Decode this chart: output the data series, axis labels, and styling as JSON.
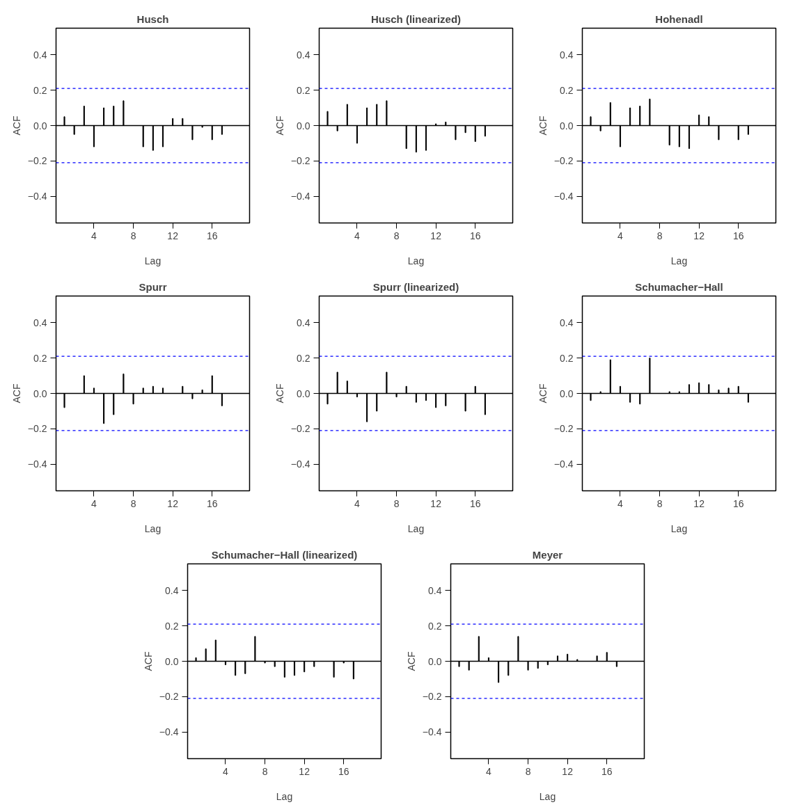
{
  "chart_data": [
    {
      "type": "bar",
      "title": "Husch",
      "xlabel": "Lag",
      "ylabel": "ACF",
      "x": [
        1,
        2,
        3,
        4,
        5,
        6,
        7,
        8,
        9,
        10,
        11,
        12,
        13,
        14,
        15,
        16,
        17
      ],
      "series": [
        {
          "color": "#000000",
          "values": [
            0.05,
            -0.05,
            0.11,
            -0.12,
            0.1,
            0.11,
            0.14,
            0.0,
            -0.12,
            -0.14,
            -0.12,
            0.04,
            0.04,
            -0.08,
            -0.01,
            -0.08,
            -0.05
          ]
        }
      ],
      "xlim": [
        0.15,
        19.8
      ],
      "ylim": [
        -0.55,
        0.55
      ],
      "xticks": [
        4,
        8,
        12,
        16
      ],
      "yticks": [
        {
          "value": -0.4,
          "label": "−0.4"
        },
        {
          "value": -0.2,
          "label": "−0.2"
        },
        {
          "value": 0.0,
          "label": "0.0"
        },
        {
          "value": 0.2,
          "label": "0.2"
        },
        {
          "value": 0.4,
          "label": "0.4"
        }
      ],
      "grid": false,
      "ref_lines": [
        {
          "axis": "y",
          "value": 0,
          "color": "#000000",
          "line_style": "solid"
        },
        {
          "axis": "y",
          "value": 0.21,
          "color": "#0000ff",
          "line_style": "dashed"
        },
        {
          "axis": "y",
          "value": -0.21,
          "color": "#0000ff",
          "line_style": "dashed"
        }
      ]
    },
    {
      "type": "bar",
      "title": "Husch (linearized)",
      "xlabel": "Lag",
      "ylabel": "ACF",
      "x": [
        1,
        2,
        3,
        4,
        5,
        6,
        7,
        8,
        9,
        10,
        11,
        12,
        13,
        14,
        15,
        16,
        17
      ],
      "series": [
        {
          "color": "#000000",
          "values": [
            0.08,
            -0.03,
            0.12,
            -0.1,
            0.1,
            0.12,
            0.14,
            0.0,
            -0.13,
            -0.15,
            -0.14,
            0.01,
            0.02,
            -0.08,
            -0.04,
            -0.09,
            -0.06
          ]
        }
      ],
      "xlim": [
        0.15,
        19.8
      ],
      "ylim": [
        -0.55,
        0.55
      ],
      "xticks": [
        4,
        8,
        12,
        16
      ],
      "yticks": [
        {
          "value": -0.4,
          "label": "−0.4"
        },
        {
          "value": -0.2,
          "label": "−0.2"
        },
        {
          "value": 0.0,
          "label": "0.0"
        },
        {
          "value": 0.2,
          "label": "0.2"
        },
        {
          "value": 0.4,
          "label": "0.4"
        }
      ],
      "grid": false,
      "ref_lines": [
        {
          "axis": "y",
          "value": 0,
          "color": "#000000",
          "line_style": "solid"
        },
        {
          "axis": "y",
          "value": 0.21,
          "color": "#0000ff",
          "line_style": "dashed"
        },
        {
          "axis": "y",
          "value": -0.21,
          "color": "#0000ff",
          "line_style": "dashed"
        }
      ]
    },
    {
      "type": "bar",
      "title": "Hohenadl",
      "xlabel": "Lag",
      "ylabel": "ACF",
      "x": [
        1,
        2,
        3,
        4,
        5,
        6,
        7,
        8,
        9,
        10,
        11,
        12,
        13,
        14,
        15,
        16,
        17
      ],
      "series": [
        {
          "color": "#000000",
          "values": [
            0.05,
            -0.03,
            0.13,
            -0.12,
            0.1,
            0.11,
            0.15,
            0.0,
            -0.11,
            -0.12,
            -0.13,
            0.06,
            0.05,
            -0.08,
            0.0,
            -0.08,
            -0.05
          ]
        }
      ],
      "xlim": [
        0.15,
        19.8
      ],
      "ylim": [
        -0.55,
        0.55
      ],
      "xticks": [
        4,
        8,
        12,
        16
      ],
      "yticks": [
        {
          "value": -0.4,
          "label": "−0.4"
        },
        {
          "value": -0.2,
          "label": "−0.2"
        },
        {
          "value": 0.0,
          "label": "0.0"
        },
        {
          "value": 0.2,
          "label": "0.2"
        },
        {
          "value": 0.4,
          "label": "0.4"
        }
      ],
      "grid": false,
      "ref_lines": [
        {
          "axis": "y",
          "value": 0,
          "color": "#000000",
          "line_style": "solid"
        },
        {
          "axis": "y",
          "value": 0.21,
          "color": "#0000ff",
          "line_style": "dashed"
        },
        {
          "axis": "y",
          "value": -0.21,
          "color": "#0000ff",
          "line_style": "dashed"
        }
      ]
    },
    {
      "type": "bar",
      "title": "Spurr",
      "xlabel": "Lag",
      "ylabel": "ACF",
      "x": [
        1,
        2,
        3,
        4,
        5,
        6,
        7,
        8,
        9,
        10,
        11,
        12,
        13,
        14,
        15,
        16,
        17
      ],
      "series": [
        {
          "color": "#000000",
          "values": [
            -0.08,
            0.0,
            0.1,
            0.03,
            -0.17,
            -0.12,
            0.11,
            -0.06,
            0.03,
            0.04,
            0.03,
            0.0,
            0.04,
            -0.03,
            0.02,
            0.1,
            -0.07
          ]
        }
      ],
      "xlim": [
        0.15,
        19.8
      ],
      "ylim": [
        -0.55,
        0.55
      ],
      "xticks": [
        4,
        8,
        12,
        16
      ],
      "yticks": [
        {
          "value": -0.4,
          "label": "−0.4"
        },
        {
          "value": -0.2,
          "label": "−0.2"
        },
        {
          "value": 0.0,
          "label": "0.0"
        },
        {
          "value": 0.2,
          "label": "0.2"
        },
        {
          "value": 0.4,
          "label": "0.4"
        }
      ],
      "grid": false,
      "ref_lines": [
        {
          "axis": "y",
          "value": 0,
          "color": "#000000",
          "line_style": "solid"
        },
        {
          "axis": "y",
          "value": 0.21,
          "color": "#0000ff",
          "line_style": "dashed"
        },
        {
          "axis": "y",
          "value": -0.21,
          "color": "#0000ff",
          "line_style": "dashed"
        }
      ]
    },
    {
      "type": "bar",
      "title": "Spurr (linearized)",
      "xlabel": "Lag",
      "ylabel": "ACF",
      "x": [
        1,
        2,
        3,
        4,
        5,
        6,
        7,
        8,
        9,
        10,
        11,
        12,
        13,
        14,
        15,
        16,
        17
      ],
      "series": [
        {
          "color": "#000000",
          "values": [
            -0.06,
            0.12,
            0.07,
            -0.02,
            -0.16,
            -0.1,
            0.12,
            -0.02,
            0.04,
            -0.05,
            -0.04,
            -0.08,
            -0.07,
            0.0,
            -0.1,
            0.04,
            -0.12
          ]
        }
      ],
      "xlim": [
        0.15,
        19.8
      ],
      "ylim": [
        -0.55,
        0.55
      ],
      "xticks": [
        4,
        8,
        12,
        16
      ],
      "yticks": [
        {
          "value": -0.4,
          "label": "−0.4"
        },
        {
          "value": -0.2,
          "label": "−0.2"
        },
        {
          "value": 0.0,
          "label": "0.0"
        },
        {
          "value": 0.2,
          "label": "0.2"
        },
        {
          "value": 0.4,
          "label": "0.4"
        }
      ],
      "grid": false,
      "ref_lines": [
        {
          "axis": "y",
          "value": 0,
          "color": "#000000",
          "line_style": "solid"
        },
        {
          "axis": "y",
          "value": 0.21,
          "color": "#0000ff",
          "line_style": "dashed"
        },
        {
          "axis": "y",
          "value": -0.21,
          "color": "#0000ff",
          "line_style": "dashed"
        }
      ]
    },
    {
      "type": "bar",
      "title": "Schumacher−Hall",
      "xlabel": "Lag",
      "ylabel": "ACF",
      "x": [
        1,
        2,
        3,
        4,
        5,
        6,
        7,
        8,
        9,
        10,
        11,
        12,
        13,
        14,
        15,
        16,
        17
      ],
      "series": [
        {
          "color": "#000000",
          "values": [
            -0.04,
            0.01,
            0.19,
            0.04,
            -0.05,
            -0.06,
            0.2,
            0.0,
            0.01,
            0.01,
            0.05,
            0.06,
            0.05,
            0.02,
            0.03,
            0.04,
            -0.05
          ]
        }
      ],
      "xlim": [
        0.15,
        19.8
      ],
      "ylim": [
        -0.55,
        0.55
      ],
      "xticks": [
        4,
        8,
        12,
        16
      ],
      "yticks": [
        {
          "value": -0.4,
          "label": "−0.4"
        },
        {
          "value": -0.2,
          "label": "−0.2"
        },
        {
          "value": 0.0,
          "label": "0.0"
        },
        {
          "value": 0.2,
          "label": "0.2"
        },
        {
          "value": 0.4,
          "label": "0.4"
        }
      ],
      "grid": false,
      "ref_lines": [
        {
          "axis": "y",
          "value": 0,
          "color": "#000000",
          "line_style": "solid"
        },
        {
          "axis": "y",
          "value": 0.21,
          "color": "#0000ff",
          "line_style": "dashed"
        },
        {
          "axis": "y",
          "value": -0.21,
          "color": "#0000ff",
          "line_style": "dashed"
        }
      ]
    },
    {
      "type": "bar",
      "title": "Schumacher−Hall (linearized)",
      "xlabel": "Lag",
      "ylabel": "ACF",
      "x": [
        1,
        2,
        3,
        4,
        5,
        6,
        7,
        8,
        9,
        10,
        11,
        12,
        13,
        14,
        15,
        16,
        17
      ],
      "series": [
        {
          "color": "#000000",
          "values": [
            0.02,
            0.07,
            0.12,
            -0.02,
            -0.08,
            -0.07,
            0.14,
            -0.01,
            -0.03,
            -0.09,
            -0.08,
            -0.06,
            -0.03,
            0.0,
            -0.09,
            -0.01,
            -0.1
          ]
        }
      ],
      "xlim": [
        0.15,
        19.8
      ],
      "ylim": [
        -0.55,
        0.55
      ],
      "xticks": [
        4,
        8,
        12,
        16
      ],
      "yticks": [
        {
          "value": -0.4,
          "label": "−0.4"
        },
        {
          "value": -0.2,
          "label": "−0.2"
        },
        {
          "value": 0.0,
          "label": "0.0"
        },
        {
          "value": 0.2,
          "label": "0.2"
        },
        {
          "value": 0.4,
          "label": "0.4"
        }
      ],
      "grid": false,
      "ref_lines": [
        {
          "axis": "y",
          "value": 0,
          "color": "#000000",
          "line_style": "solid"
        },
        {
          "axis": "y",
          "value": 0.21,
          "color": "#0000ff",
          "line_style": "dashed"
        },
        {
          "axis": "y",
          "value": -0.21,
          "color": "#0000ff",
          "line_style": "dashed"
        }
      ]
    },
    {
      "type": "bar",
      "title": "Meyer",
      "xlabel": "Lag",
      "ylabel": "ACF",
      "x": [
        1,
        2,
        3,
        4,
        5,
        6,
        7,
        8,
        9,
        10,
        11,
        12,
        13,
        14,
        15,
        16,
        17
      ],
      "series": [
        {
          "color": "#000000",
          "values": [
            -0.03,
            -0.05,
            0.14,
            0.02,
            -0.12,
            -0.08,
            0.14,
            -0.05,
            -0.04,
            -0.02,
            0.03,
            0.04,
            0.01,
            0.0,
            0.03,
            0.05,
            -0.03
          ]
        }
      ],
      "xlim": [
        0.15,
        19.8
      ],
      "ylim": [
        -0.55,
        0.55
      ],
      "xticks": [
        4,
        8,
        12,
        16
      ],
      "yticks": [
        {
          "value": -0.4,
          "label": "−0.4"
        },
        {
          "value": -0.2,
          "label": "−0.2"
        },
        {
          "value": 0.0,
          "label": "0.0"
        },
        {
          "value": 0.2,
          "label": "0.2"
        },
        {
          "value": 0.4,
          "label": "0.4"
        }
      ],
      "grid": false,
      "ref_lines": [
        {
          "axis": "y",
          "value": 0,
          "color": "#000000",
          "line_style": "solid"
        },
        {
          "axis": "y",
          "value": 0.21,
          "color": "#0000ff",
          "line_style": "dashed"
        },
        {
          "axis": "y",
          "value": -0.21,
          "color": "#0000ff",
          "line_style": "dashed"
        }
      ]
    }
  ]
}
